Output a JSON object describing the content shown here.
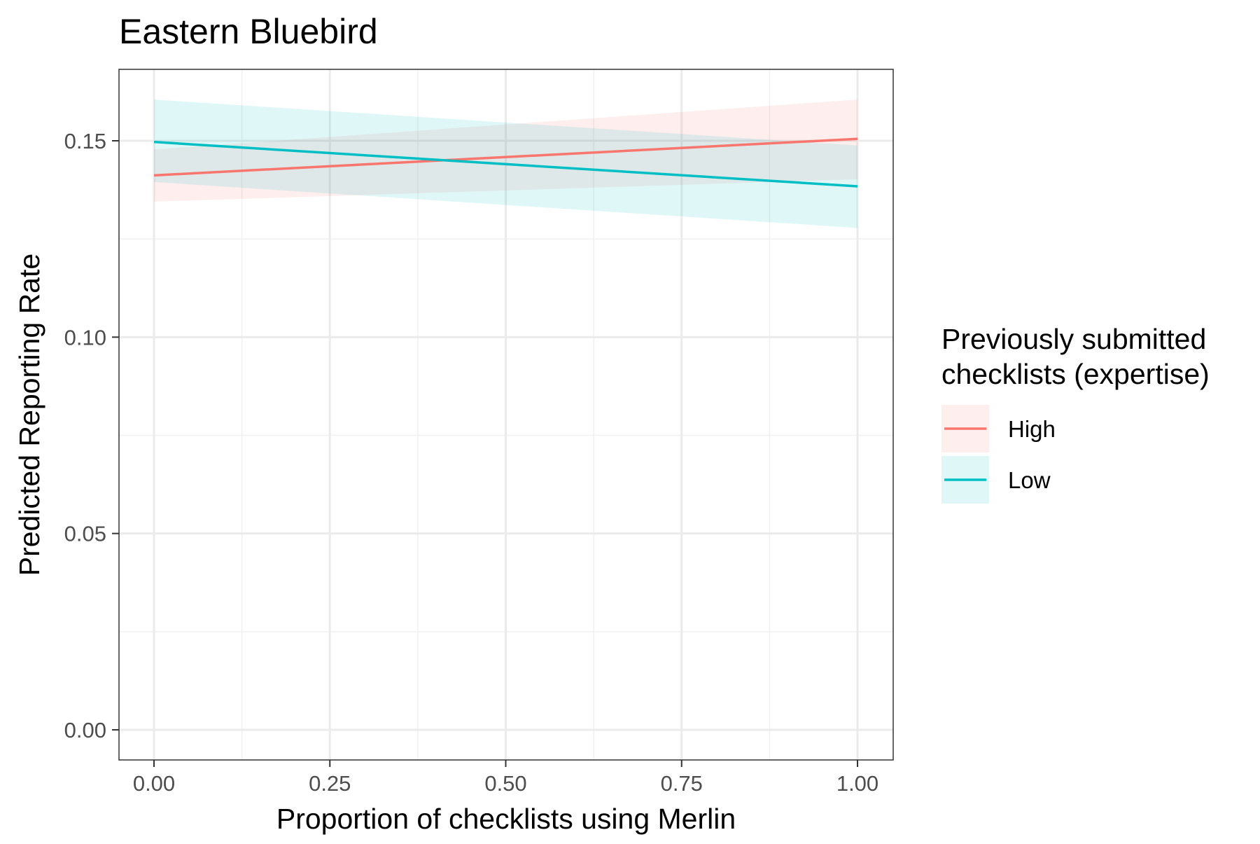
{
  "chart_data": {
    "type": "line",
    "title": "Eastern Bluebird",
    "xlabel": "Proportion of checklists using Merlin",
    "ylabel": "Predicted Reporting Rate",
    "xlim": [
      -0.1,
      2.1
    ],
    "ylim": [
      -0.0075,
      0.168
    ],
    "x_ticks": [
      0.0,
      0.25,
      0.5,
      0.75,
      1.0
    ],
    "x_tick_labels": [
      "0.00",
      "0.25",
      "0.50",
      "0.75",
      "1.00"
    ],
    "y_ticks": [
      0.0,
      0.05,
      0.1,
      0.15
    ],
    "y_tick_labels": [
      "0.00",
      "0.05",
      "0.10",
      "0.15"
    ],
    "grid": true,
    "legend": {
      "title": "Previously submitted checklists (expertise)",
      "title_lines": [
        "Previously submitted",
        "checklists (expertise)"
      ],
      "placement": "right"
    },
    "series": [
      {
        "name": "High",
        "color": "#F8766D",
        "x": [
          0.0,
          1.0
        ],
        "y": [
          0.1412,
          0.1505
        ],
        "ci_lower": [
          0.1345,
          0.1402
        ],
        "ci_upper": [
          0.1478,
          0.1605
        ]
      },
      {
        "name": "Low",
        "color": "#00BFC4",
        "x": [
          0.0,
          1.0
        ],
        "y": [
          0.1497,
          0.1384
        ],
        "ci_lower": [
          0.1395,
          0.1278
        ],
        "ci_upper": [
          0.1605,
          0.1488
        ]
      }
    ]
  }
}
